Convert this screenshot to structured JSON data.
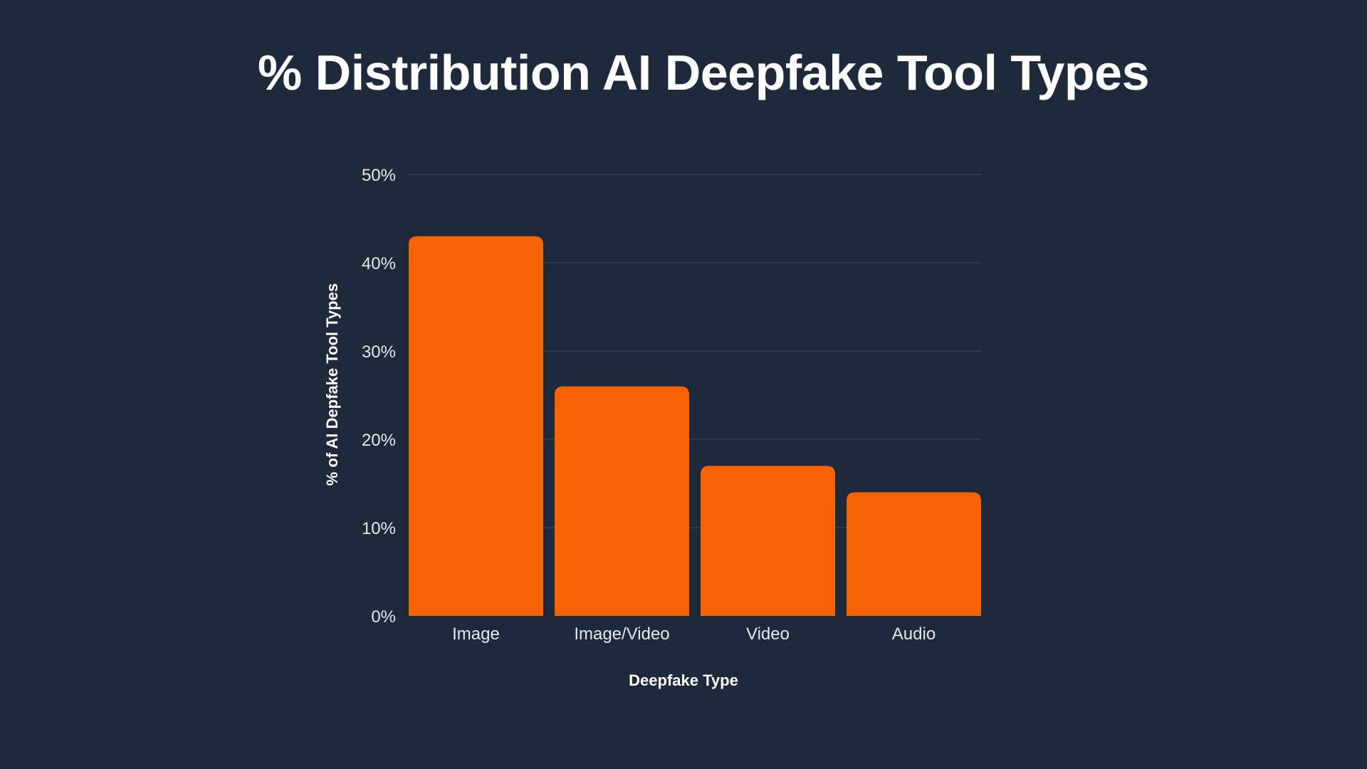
{
  "chart_data": {
    "type": "bar",
    "title": "% Distribution AI Deepfake Tool Types",
    "xlabel": "Deepfake Type",
    "ylabel": "% of AI Depfake Tool Types",
    "categories": [
      "Image",
      "Image/Video",
      "Video",
      "Audio"
    ],
    "values": [
      43,
      26,
      17,
      14
    ],
    "ylim": [
      0,
      50
    ],
    "yticks": [
      0,
      10,
      20,
      30,
      40,
      50
    ],
    "ytick_labels": [
      "0%",
      "10%",
      "20%",
      "30%",
      "40%",
      "50%"
    ],
    "grid": true,
    "colors": {
      "background": "#1e293b",
      "bar": "#f76205",
      "grid": "#3b4658",
      "text": "#ffffff"
    }
  }
}
